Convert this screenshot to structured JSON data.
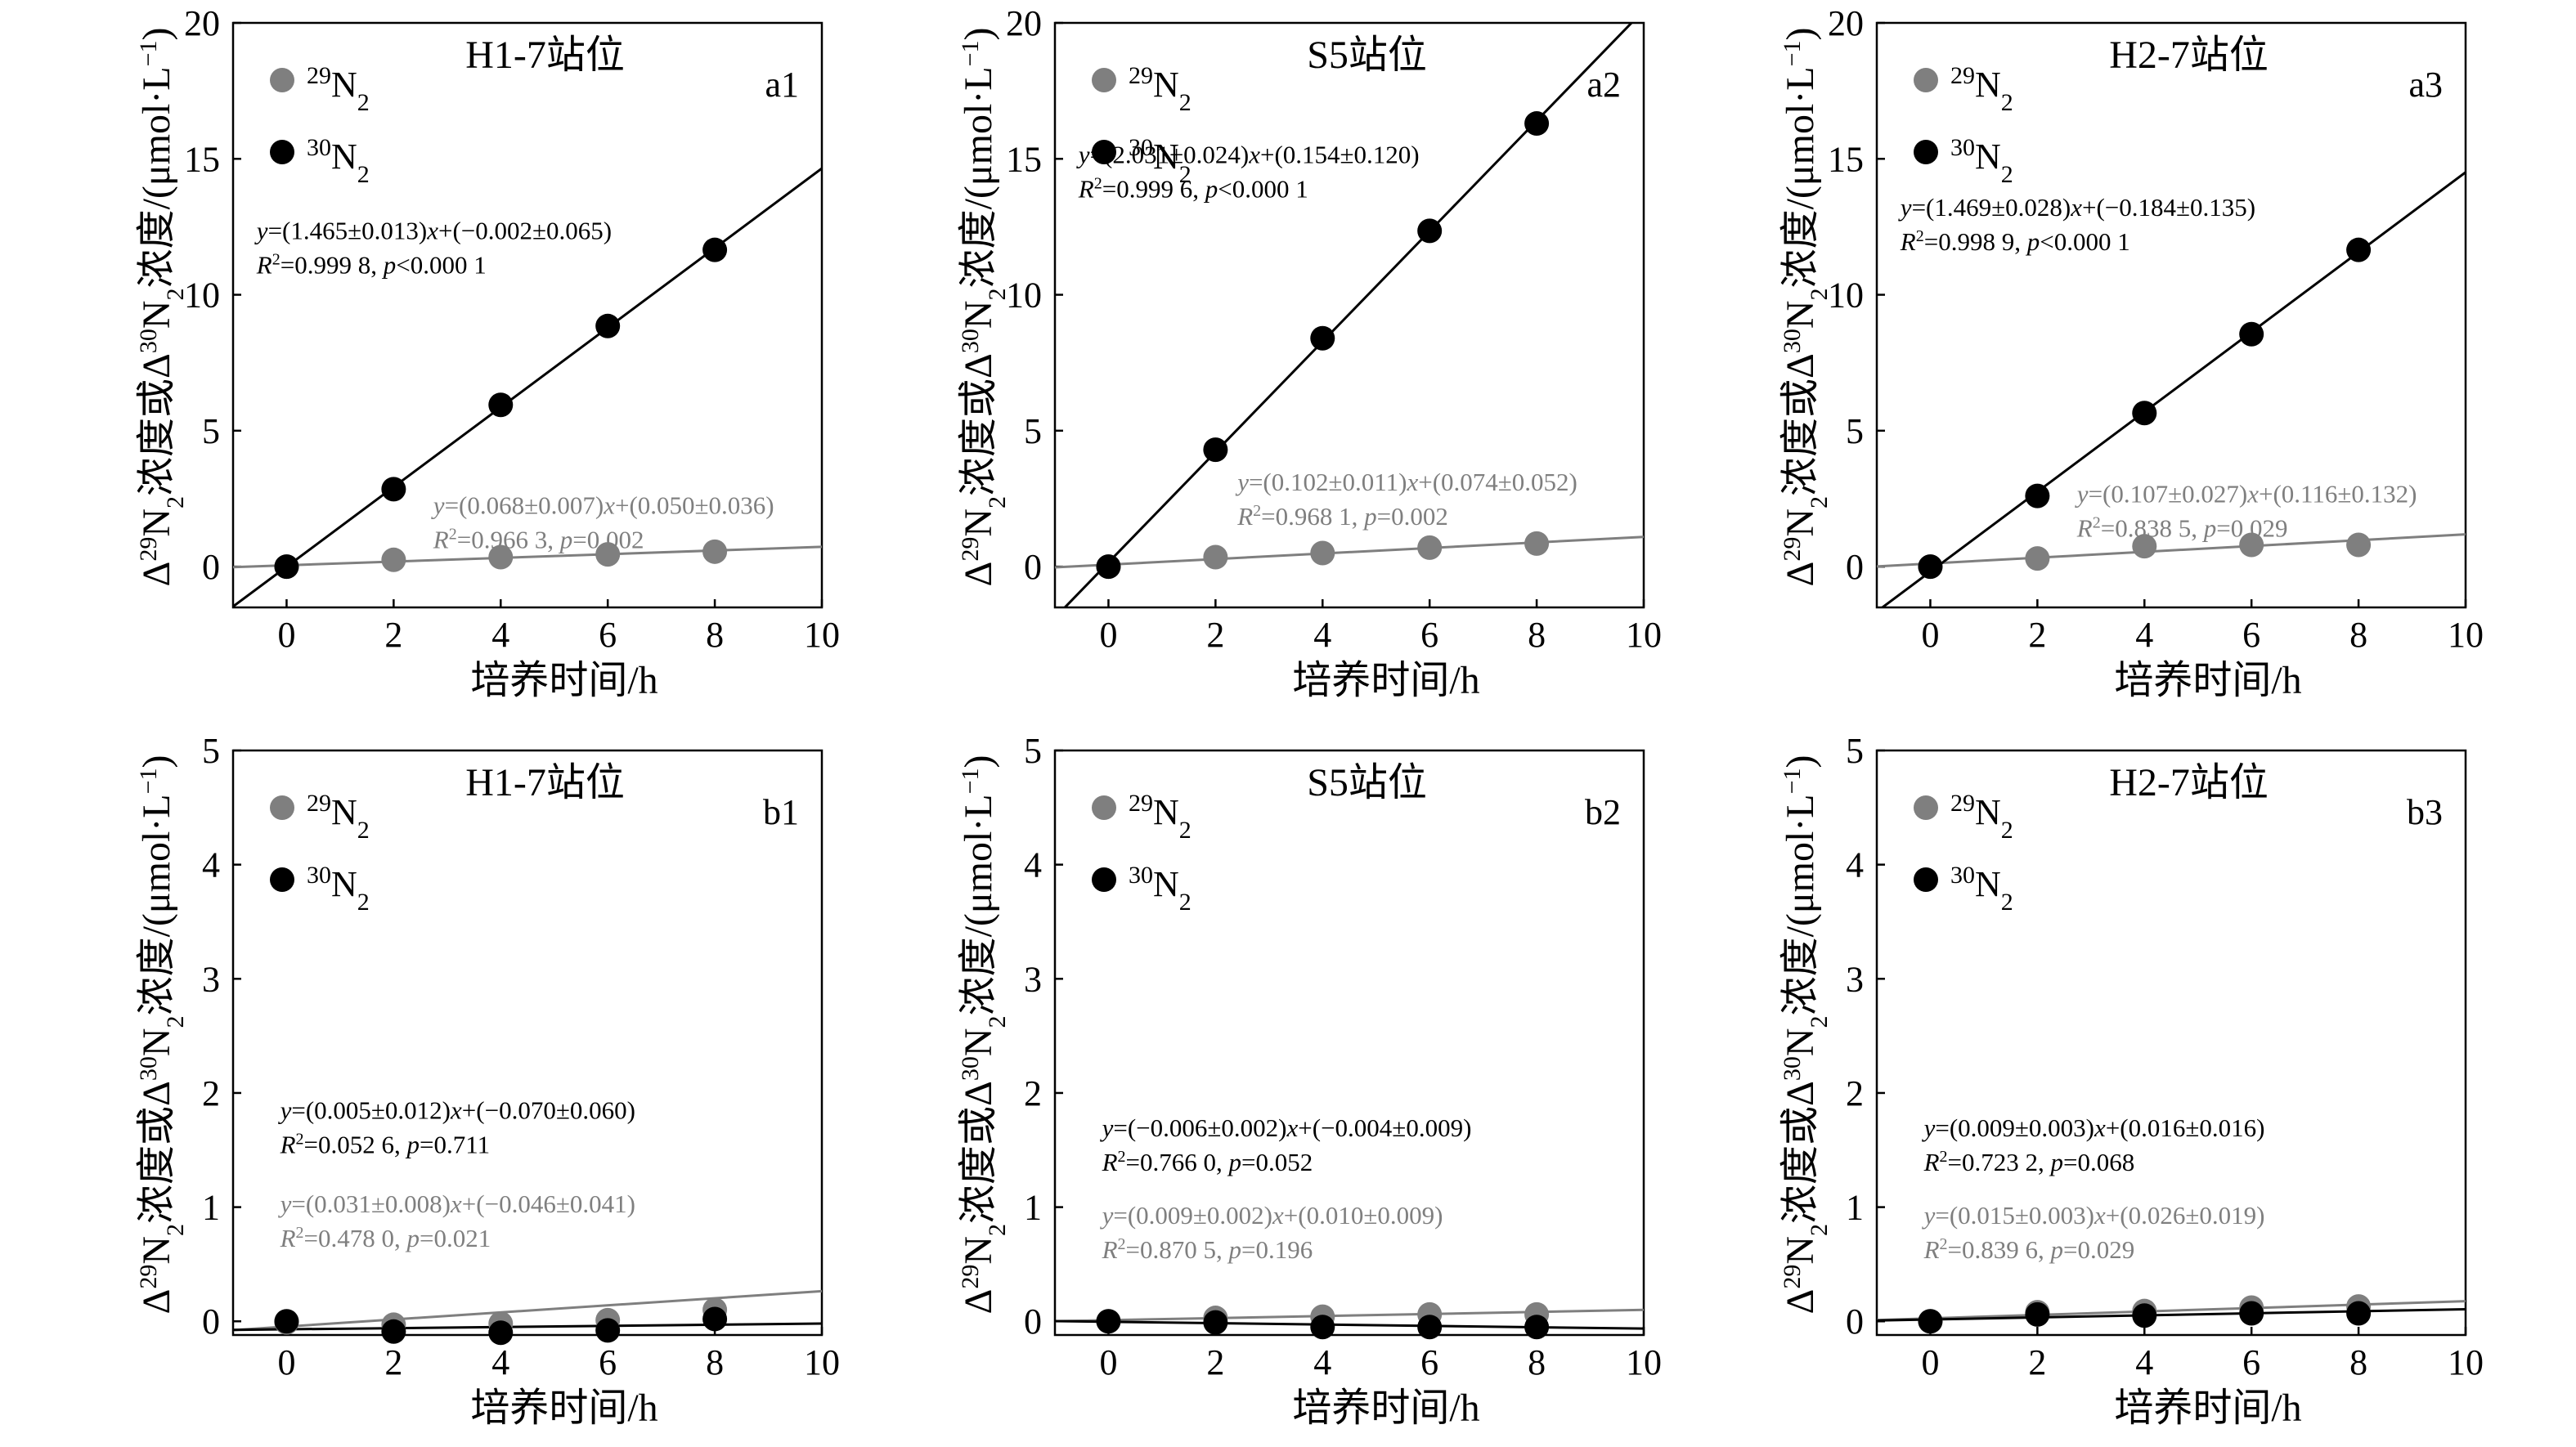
{
  "figure": {
    "colors": {
      "n29": "#7f7f7f",
      "n30": "#000000"
    },
    "chart_data": [
      {
        "type": "scatter",
        "id": "a1",
        "title": "H1-7站位",
        "tag": "a1",
        "xlabel": "培养时间/h",
        "ylabel_parts": [
          "Δ",
          "29",
          "N",
          "2",
          "浓度或Δ",
          "30",
          "N",
          "2",
          "浓度/(μmol·L",
          "−1",
          ")"
        ],
        "xlim": [
          -1,
          10
        ],
        "ylim": [
          -1.5,
          20
        ],
        "xticks": [
          0,
          2,
          4,
          6,
          8,
          10
        ],
        "yticks": [
          0,
          5,
          10,
          15,
          20
        ],
        "legend": [
          {
            "sup": "29",
            "base": "N",
            "sub": "2",
            "color": "n29"
          },
          {
            "sup": "30",
            "base": "N",
            "sub": "2",
            "color": "n30"
          }
        ],
        "series": [
          {
            "name": "29N2",
            "color": "n29",
            "x": [
              0,
              2,
              4,
              6,
              8
            ],
            "y": [
              0.0,
              0.25,
              0.35,
              0.45,
              0.55
            ],
            "slope": 0.068,
            "intercept": 0.05,
            "eq1": "y=(0.068±0.007)x+(0.050±0.036)",
            "eq2": "R²=0.966 3, p=0.002"
          },
          {
            "name": "30N2",
            "color": "n30",
            "x": [
              0,
              2,
              4,
              6,
              8
            ],
            "y": [
              0.0,
              2.85,
              5.95,
              8.85,
              11.65
            ],
            "slope": 1.465,
            "intercept": -0.002,
            "eq1": "y=(1.465±0.013)x+(−0.002±0.065)",
            "eq2": "R²=0.999 8, p<0.000 1"
          }
        ]
      },
      {
        "type": "scatter",
        "id": "a2",
        "title": "S5站位",
        "tag": "a2",
        "xlabel": "培养时间/h",
        "ylabel_parts": [
          "Δ",
          "29",
          "N",
          "2",
          "浓度或Δ",
          "30",
          "N",
          "2",
          "浓度/(μmol·L",
          "−1",
          ")"
        ],
        "xlim": [
          -1,
          10
        ],
        "ylim": [
          -1.5,
          20
        ],
        "xticks": [
          0,
          2,
          4,
          6,
          8,
          10
        ],
        "yticks": [
          0,
          5,
          10,
          15,
          20
        ],
        "legend": [
          {
            "sup": "29",
            "base": "N",
            "sub": "2",
            "color": "n29"
          },
          {
            "sup": "30",
            "base": "N",
            "sub": "2",
            "color": "n30"
          }
        ],
        "series": [
          {
            "name": "29N2",
            "color": "n29",
            "x": [
              0,
              2,
              4,
              6,
              8
            ],
            "y": [
              0.0,
              0.35,
              0.5,
              0.7,
              0.85
            ],
            "slope": 0.102,
            "intercept": 0.074,
            "eq1": "y=(0.102±0.011)x+(0.074±0.052)",
            "eq2": "R²=0.968 1, p=0.002"
          },
          {
            "name": "30N2",
            "color": "n30",
            "x": [
              0,
              2,
              4,
              6,
              8
            ],
            "y": [
              0.0,
              4.3,
              8.4,
              12.35,
              16.3
            ],
            "slope": 2.031,
            "intercept": 0.154,
            "eq1": "y=(2.031±0.024)x+(0.154±0.120)",
            "eq2": "R²=0.999 6, p<0.000 1"
          }
        ]
      },
      {
        "type": "scatter",
        "id": "a3",
        "title": "H2-7站位",
        "tag": "a3",
        "xlabel": "培养时间/h",
        "ylabel_parts": [
          "Δ",
          "29",
          "N",
          "2",
          "浓度或Δ",
          "30",
          "N",
          "2",
          "浓度/(μmol·L",
          "−1",
          ")"
        ],
        "xlim": [
          -1,
          10
        ],
        "ylim": [
          -1.5,
          20
        ],
        "xticks": [
          0,
          2,
          4,
          6,
          8,
          10
        ],
        "yticks": [
          0,
          5,
          10,
          15,
          20
        ],
        "legend": [
          {
            "sup": "29",
            "base": "N",
            "sub": "2",
            "color": "n29"
          },
          {
            "sup": "30",
            "base": "N",
            "sub": "2",
            "color": "n30"
          }
        ],
        "series": [
          {
            "name": "29N2",
            "color": "n29",
            "x": [
              0,
              2,
              4,
              6,
              8
            ],
            "y": [
              0.0,
              0.3,
              0.75,
              0.8,
              0.8
            ],
            "slope": 0.107,
            "intercept": 0.116,
            "eq1": "y=(0.107±0.027)x+(0.116±0.132)",
            "eq2": "R²=0.838 5, p=0.029"
          },
          {
            "name": "30N2",
            "color": "n30",
            "x": [
              0,
              2,
              4,
              6,
              8
            ],
            "y": [
              0.0,
              2.6,
              5.65,
              8.55,
              11.65
            ],
            "slope": 1.469,
            "intercept": -0.184,
            "eq1": "y=(1.469±0.028)x+(−0.184±0.135)",
            "eq2": "R²=0.998 9, p<0.000 1"
          }
        ]
      },
      {
        "type": "scatter",
        "id": "b1",
        "title": "H1-7站位",
        "tag": "b1",
        "xlabel": "培养时间/h",
        "ylabel_parts": [
          "Δ",
          "29",
          "N",
          "2",
          "浓度或Δ",
          "30",
          "N",
          "2",
          "浓度/(μmol·L",
          "−1",
          ")"
        ],
        "xlim": [
          -1,
          10
        ],
        "ylim": [
          -0.12,
          5
        ],
        "xticks": [
          0,
          2,
          4,
          6,
          8,
          10
        ],
        "yticks": [
          0,
          1,
          2,
          3,
          4,
          5
        ],
        "legend": [
          {
            "sup": "29",
            "base": "N",
            "sub": "2",
            "color": "n29"
          },
          {
            "sup": "30",
            "base": "N",
            "sub": "2",
            "color": "n30"
          }
        ],
        "series": [
          {
            "name": "29N2",
            "color": "n29",
            "x": [
              0,
              2,
              4,
              6,
              8
            ],
            "y": [
              -0.01,
              -0.03,
              -0.02,
              0.01,
              0.1
            ],
            "slope": 0.031,
            "intercept": -0.046,
            "eq1": "y=(0.031±0.008)x+(−0.046±0.041)",
            "eq2": "R²=0.478 0, p=0.021"
          },
          {
            "name": "30N2",
            "color": "n30",
            "x": [
              0,
              2,
              4,
              6,
              8
            ],
            "y": [
              0.0,
              -0.09,
              -0.1,
              -0.08,
              0.02
            ],
            "slope": 0.005,
            "intercept": -0.07,
            "eq1": "y=(0.005±0.012)x+(−0.070±0.060)",
            "eq2": "R²=0.052 6, p=0.711"
          }
        ]
      },
      {
        "type": "scatter",
        "id": "b2",
        "title": "S5站位",
        "tag": "b2",
        "xlabel": "培养时间/h",
        "ylabel_parts": [
          "Δ",
          "29",
          "N",
          "2",
          "浓度或Δ",
          "30",
          "N",
          "2",
          "浓度/(μmol·L",
          "−1",
          ")"
        ],
        "xlim": [
          -1,
          10
        ],
        "ylim": [
          -0.12,
          5
        ],
        "xticks": [
          0,
          2,
          4,
          6,
          8,
          10
        ],
        "yticks": [
          0,
          1,
          2,
          3,
          4,
          5
        ],
        "legend": [
          {
            "sup": "29",
            "base": "N",
            "sub": "2",
            "color": "n29"
          },
          {
            "sup": "30",
            "base": "N",
            "sub": "2",
            "color": "n30"
          }
        ],
        "series": [
          {
            "name": "29N2",
            "color": "n29",
            "x": [
              0,
              2,
              4,
              6,
              8
            ],
            "y": [
              0.0,
              0.03,
              0.04,
              0.06,
              0.06
            ],
            "slope": 0.009,
            "intercept": 0.01,
            "eq1": "y=(0.009±0.002)x+(0.010±0.009)",
            "eq2": "R²=0.870 5, p=0.196"
          },
          {
            "name": "30N2",
            "color": "n30",
            "x": [
              0,
              2,
              4,
              6,
              8
            ],
            "y": [
              0.0,
              -0.01,
              -0.05,
              -0.05,
              -0.05
            ],
            "slope": -0.006,
            "intercept": -0.004,
            "eq1": "y=(−0.006±0.002)x+(−0.004±0.009)",
            "eq2": "R²=0.766 0, p=0.052"
          }
        ]
      },
      {
        "type": "scatter",
        "id": "b3",
        "title": "H2-7站位",
        "tag": "b3",
        "xlabel": "培养时间/h",
        "ylabel_parts": [
          "Δ",
          "29",
          "N",
          "2",
          "浓度或Δ",
          "30",
          "N",
          "2",
          "浓度/(μmol·L",
          "−1",
          ")"
        ],
        "xlim": [
          -1,
          10
        ],
        "ylim": [
          -0.12,
          5
        ],
        "xticks": [
          0,
          2,
          4,
          6,
          8,
          10
        ],
        "yticks": [
          0,
          1,
          2,
          3,
          4,
          5
        ],
        "legend": [
          {
            "sup": "29",
            "base": "N",
            "sub": "2",
            "color": "n29"
          },
          {
            "sup": "30",
            "base": "N",
            "sub": "2",
            "color": "n30"
          }
        ],
        "series": [
          {
            "name": "29N2",
            "color": "n29",
            "x": [
              0,
              2,
              4,
              6,
              8
            ],
            "y": [
              0.0,
              0.08,
              0.09,
              0.12,
              0.13
            ],
            "slope": 0.015,
            "intercept": 0.026,
            "eq1": "y=(0.015±0.003)x+(0.026±0.019)",
            "eq2": "R²=0.839 6, p=0.029"
          },
          {
            "name": "30N2",
            "color": "n30",
            "x": [
              0,
              2,
              4,
              6,
              8
            ],
            "y": [
              0.0,
              0.06,
              0.05,
              0.07,
              0.07
            ],
            "slope": 0.009,
            "intercept": 0.016,
            "eq1": "y=(0.009±0.003)x+(0.016±0.016)",
            "eq2": "R²=0.723 2, p=0.068"
          }
        ]
      }
    ]
  }
}
